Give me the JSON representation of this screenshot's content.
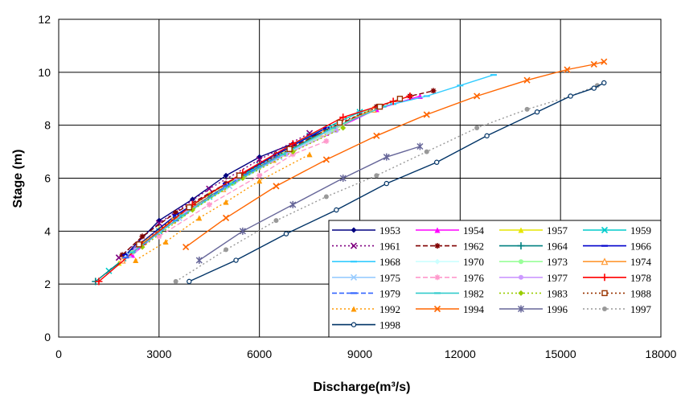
{
  "chart_data": {
    "type": "line",
    "xlabel": "Discharge(m³/s)",
    "ylabel": "Stage (m)",
    "xlim": [
      0,
      18000
    ],
    "ylim": [
      0,
      12
    ],
    "xticks": [
      "0",
      "3000",
      "6000",
      "9000",
      "12000",
      "15000",
      "18000"
    ],
    "yticks": [
      "0",
      "2",
      "4",
      "6",
      "8",
      "10",
      "12"
    ],
    "grid": true,
    "legend_position": "bottom-right",
    "series": [
      {
        "name": "1953",
        "color": "#000080",
        "dash": "solid",
        "marker": "diamond",
        "x": [
          2000,
          3000,
          4000,
          5000,
          6000,
          7000,
          8000
        ],
        "y": [
          3.1,
          4.4,
          5.2,
          6.1,
          6.8,
          7.3,
          7.8
        ]
      },
      {
        "name": "1954",
        "color": "#ff00ff",
        "dash": "solid",
        "marker": "triangle",
        "x": [
          2200,
          3500,
          5000,
          6500,
          8000,
          9500,
          10800
        ],
        "y": [
          3.1,
          4.5,
          5.7,
          6.8,
          7.7,
          8.6,
          9.1
        ]
      },
      {
        "name": "1957",
        "color": "#e6e600",
        "dash": "solid",
        "marker": "triangle",
        "x": [
          1800,
          3000,
          4500,
          6000,
          7500
        ],
        "y": [
          2.8,
          4.1,
          5.4,
          6.5,
          7.6
        ]
      },
      {
        "name": "1959",
        "color": "#00cccc",
        "dash": "solid",
        "marker": "x",
        "x": [
          1500,
          3000,
          4500,
          6000,
          7500,
          9000
        ],
        "y": [
          2.5,
          4.0,
          5.3,
          6.5,
          7.6,
          8.5
        ]
      },
      {
        "name": "1961",
        "color": "#800080",
        "dash": "dot",
        "marker": "x",
        "x": [
          1800,
          3000,
          4500,
          6000,
          7500
        ],
        "y": [
          3.0,
          4.3,
          5.6,
          6.7,
          7.7
        ]
      },
      {
        "name": "1962",
        "color": "#800000",
        "dash": "dash",
        "marker": "star",
        "x": [
          1900,
          2500,
          3500,
          5000,
          6500,
          8000,
          9500,
          10500,
          11200
        ],
        "y": [
          3.1,
          3.8,
          4.7,
          5.8,
          6.9,
          7.8,
          8.7,
          9.1,
          9.3
        ]
      },
      {
        "name": "1964",
        "color": "#008080",
        "dash": "solid",
        "marker": "plus",
        "x": [
          1100,
          2000,
          3500,
          5000,
          6500,
          8000
        ],
        "y": [
          2.1,
          3.0,
          4.5,
          5.7,
          6.8,
          7.8
        ]
      },
      {
        "name": "1966",
        "color": "#0000cc",
        "dash": "solid",
        "marker": "dash",
        "x": [
          2000,
          3500,
          5000,
          6500,
          8000
        ],
        "y": [
          3.1,
          4.6,
          5.8,
          6.9,
          7.9
        ]
      },
      {
        "name": "1968",
        "color": "#33ccff",
        "dash": "solid",
        "marker": "dash",
        "x": [
          9000,
          10000,
          11000,
          12000,
          13000
        ],
        "y": [
          8.5,
          8.8,
          9.1,
          9.5,
          9.9
        ]
      },
      {
        "name": "1970",
        "color": "#ccffff",
        "dash": "solid",
        "marker": "diamond",
        "x": [
          2000,
          3500,
          5000,
          6500,
          8000
        ],
        "y": [
          3.0,
          4.4,
          5.6,
          6.7,
          7.7
        ]
      },
      {
        "name": "1973",
        "color": "#99ff99",
        "dash": "solid",
        "marker": "circle",
        "x": [
          2200,
          3700,
          5200,
          6700,
          8200,
          9200
        ],
        "y": [
          3.2,
          4.6,
          5.8,
          6.9,
          7.8,
          8.5
        ]
      },
      {
        "name": "1974",
        "color": "#ff9933",
        "dash": "solid",
        "marker": "triangle-open",
        "x": [
          1900,
          3400,
          4900,
          6400,
          7900,
          9400
        ],
        "y": [
          2.9,
          4.4,
          5.6,
          6.7,
          7.7,
          8.6
        ]
      },
      {
        "name": "1975",
        "color": "#99ccff",
        "dash": "solid",
        "marker": "x",
        "x": [
          2100,
          3600,
          5100,
          6600,
          8100
        ],
        "y": [
          3.1,
          4.5,
          5.7,
          6.8,
          7.8
        ]
      },
      {
        "name": "1976",
        "color": "#ff99cc",
        "dash": "dash",
        "marker": "star",
        "x": [
          3000,
          4500,
          6000,
          7000,
          8000
        ],
        "y": [
          3.8,
          5.0,
          6.1,
          6.9,
          7.4
        ]
      },
      {
        "name": "1977",
        "color": "#cc99ff",
        "dash": "solid",
        "marker": "circle",
        "x": [
          2300,
          3800,
          5300,
          6800,
          8300
        ],
        "y": [
          3.3,
          4.7,
          5.9,
          6.9,
          7.8
        ]
      },
      {
        "name": "1978",
        "color": "#ff0000",
        "dash": "solid",
        "marker": "plus",
        "x": [
          1200,
          2500,
          4000,
          5500,
          7000,
          8500,
          10000,
          10500
        ],
        "y": [
          2.1,
          3.5,
          5.0,
          6.2,
          7.3,
          8.3,
          8.9,
          9.1
        ]
      },
      {
        "name": "1979",
        "color": "#3366ff",
        "dash": "dash",
        "marker": "dash",
        "x": [
          2000,
          3500,
          5000,
          6500
        ],
        "y": [
          3.0,
          4.4,
          5.7,
          6.8
        ]
      },
      {
        "name": "1982",
        "color": "#33cccc",
        "dash": "solid",
        "marker": "dash",
        "x": [
          2200,
          3700,
          5200,
          6700,
          8200,
          9700
        ],
        "y": [
          3.2,
          4.6,
          5.8,
          6.9,
          7.9,
          8.7
        ]
      },
      {
        "name": "1983",
        "color": "#99cc00",
        "dash": "dot",
        "marker": "diamond",
        "x": [
          2500,
          4000,
          5500,
          7000,
          8500
        ],
        "y": [
          3.4,
          4.8,
          6.0,
          7.0,
          7.9
        ]
      },
      {
        "name": "1988",
        "color": "#993300",
        "dash": "dot",
        "marker": "square-open",
        "x": [
          2400,
          3900,
          5400,
          6900,
          8400,
          9600,
          10200
        ],
        "y": [
          3.5,
          4.9,
          6.1,
          7.1,
          8.1,
          8.7,
          9.0
        ]
      },
      {
        "name": "1992",
        "color": "#ff9900",
        "dash": "dot",
        "marker": "triangle",
        "x": [
          2300,
          3200,
          4200,
          5000,
          6000,
          7500
        ],
        "y": [
          2.9,
          3.6,
          4.5,
          5.1,
          5.9,
          6.9
        ]
      },
      {
        "name": "1994",
        "color": "#ff6600",
        "dash": "solid",
        "marker": "x",
        "x": [
          3800,
          5000,
          6500,
          8000,
          9500,
          11000,
          12500,
          14000,
          15200,
          16000,
          16300
        ],
        "y": [
          3.4,
          4.5,
          5.7,
          6.7,
          7.6,
          8.4,
          9.1,
          9.7,
          10.1,
          10.3,
          10.4
        ]
      },
      {
        "name": "1996",
        "color": "#666699",
        "dash": "solid",
        "marker": "asterisk",
        "x": [
          4200,
          5500,
          7000,
          8500,
          9800,
          10800
        ],
        "y": [
          2.9,
          4.0,
          5.0,
          6.0,
          6.8,
          7.2
        ]
      },
      {
        "name": "1997",
        "color": "#999999",
        "dash": "dot",
        "marker": "circle",
        "x": [
          3500,
          5000,
          6500,
          8000,
          9500,
          11000,
          12500,
          14000,
          15300,
          16100
        ],
        "y": [
          2.1,
          3.3,
          4.4,
          5.3,
          6.1,
          7.0,
          7.9,
          8.6,
          9.1,
          9.5
        ]
      },
      {
        "name": "1998",
        "color": "#003366",
        "dash": "solid",
        "marker": "circle-open",
        "x": [
          3900,
          5300,
          6800,
          8300,
          9800,
          11300,
          12800,
          14300,
          15300,
          16000,
          16300
        ],
        "y": [
          2.1,
          2.9,
          3.9,
          4.8,
          5.8,
          6.6,
          7.6,
          8.5,
          9.1,
          9.4,
          9.6
        ]
      }
    ]
  }
}
